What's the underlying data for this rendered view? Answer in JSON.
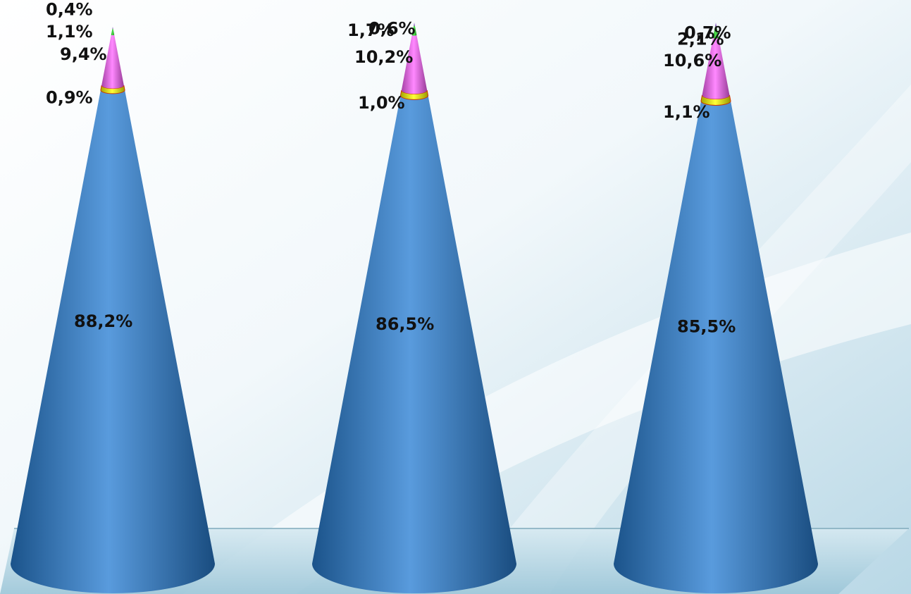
{
  "chart_data": {
    "type": "cone",
    "title": "",
    "xlabel": "",
    "ylabel": "",
    "stacked": true,
    "categories": [
      "",
      "",
      ""
    ],
    "series": [
      {
        "color": "#2a7fd4",
        "values": [
          88.2,
          86.5,
          85.5
        ]
      },
      {
        "color": "#ffff00",
        "values": [
          0.9,
          1.0,
          1.1
        ]
      },
      {
        "color": "#ff66ff",
        "values": [
          9.4,
          10.2,
          10.6
        ]
      },
      {
        "color": "#22e022",
        "values": [
          1.1,
          1.7,
          2.1
        ]
      },
      {
        "color": "#8844cc",
        "values": [
          0.4,
          0.6,
          0.7
        ]
      }
    ],
    "data_labels": [
      [
        "88,2%",
        "86,5%",
        "85,5%"
      ],
      [
        "0,9%",
        "1,0%",
        "1,1%"
      ],
      [
        "9,4%",
        "10,2%",
        "10,6%"
      ],
      [
        "1,1%",
        "1,7%",
        "2,1%"
      ],
      [
        "0,4%",
        "0,6%",
        "0,7%"
      ]
    ],
    "grid": false,
    "legend": "none"
  }
}
